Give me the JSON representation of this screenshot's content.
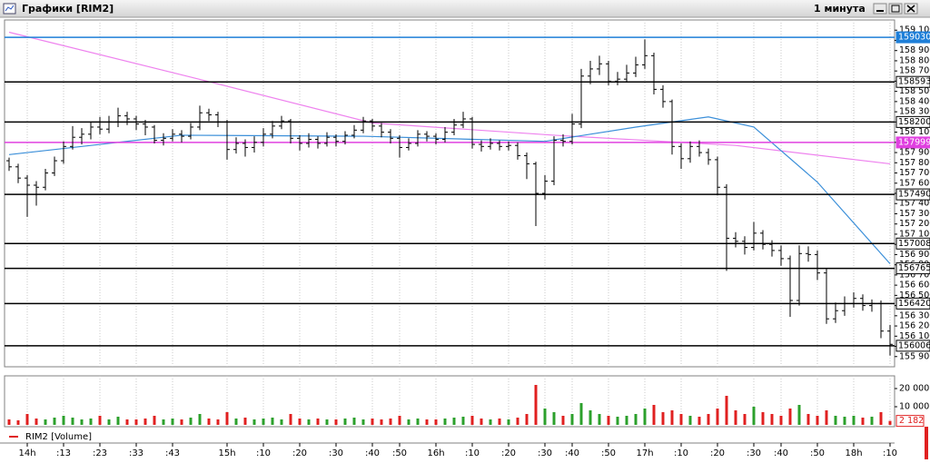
{
  "window": {
    "title": "Графики [RIM2]",
    "timeframe": "1 минута"
  },
  "chart_data": {
    "type": "ohlc",
    "bar_color": "#000000",
    "up_color": "#2ca02c",
    "down_color": "#e02020",
    "categories": [
      null,
      null,
      "14h",
      null,
      null,
      null,
      ":13",
      null,
      null,
      null,
      ":23",
      null,
      null,
      null,
      ":33",
      null,
      null,
      null,
      ":43",
      null,
      null,
      null,
      null,
      null,
      "15h",
      null,
      null,
      null,
      ":10",
      null,
      null,
      null,
      ":20",
      null,
      null,
      null,
      ":30",
      null,
      null,
      null,
      ":40",
      null,
      null,
      ":50",
      null,
      null,
      null,
      "16h",
      null,
      null,
      null,
      ":10",
      null,
      null,
      null,
      ":20",
      null,
      null,
      null,
      ":30",
      null,
      null,
      ":40",
      null,
      null,
      null,
      ":50",
      null,
      null,
      null,
      "17h",
      null,
      null,
      null,
      ":10",
      null,
      null,
      null,
      ":20",
      null,
      null,
      null,
      ":30",
      null,
      null,
      ":40",
      null,
      null,
      null,
      ":50",
      null,
      null,
      null,
      "18h",
      null,
      null,
      null,
      ":10"
    ],
    "open": [
      157820,
      157760,
      157650,
      157580,
      157560,
      157700,
      157820,
      157960,
      158050,
      158080,
      158150,
      158130,
      158200,
      158260,
      158230,
      158180,
      158150,
      158020,
      158040,
      158080,
      158060,
      158150,
      158290,
      158270,
      158200,
      157930,
      157990,
      157950,
      158000,
      158080,
      158160,
      158210,
      158040,
      157990,
      158030,
      157990,
      158050,
      158010,
      158070,
      158120,
      158210,
      158160,
      158100,
      158040,
      157950,
      157990,
      158080,
      158060,
      158030,
      158100,
      158170,
      158230,
      157980,
      157960,
      157990,
      157960,
      157970,
      157870,
      157790,
      157500,
      157620,
      158020,
      158010,
      158180,
      158650,
      158720,
      158770,
      158600,
      158620,
      158680,
      158760,
      158850,
      158520,
      158400,
      157960,
      157840,
      157960,
      157900,
      157830,
      157560,
      157060,
      157030,
      156970,
      157110,
      157000,
      156940,
      156860,
      156450,
      156910,
      156900,
      156720,
      156270,
      156350,
      156420,
      156470,
      156400,
      156420,
      156150
    ],
    "high": [
      157850,
      157790,
      157680,
      157620,
      157740,
      157860,
      158010,
      158160,
      158140,
      158200,
      158250,
      158260,
      158340,
      158300,
      158260,
      158220,
      158170,
      158090,
      158130,
      158120,
      158190,
      158360,
      158330,
      158300,
      158220,
      158050,
      158030,
      158060,
      158140,
      158210,
      158260,
      158230,
      158070,
      158090,
      158060,
      158100,
      158080,
      158110,
      158170,
      158250,
      158230,
      158190,
      158130,
      158070,
      158040,
      158120,
      158110,
      158090,
      158150,
      158230,
      158300,
      158250,
      158020,
      158040,
      158020,
      158010,
      158000,
      157900,
      157810,
      157680,
      158060,
      158080,
      158280,
      158720,
      158800,
      158850,
      158800,
      158690,
      158760,
      158840,
      159010,
      158880,
      158560,
      158420,
      157990,
      158010,
      158020,
      157940,
      157860,
      157590,
      157120,
      157080,
      157220,
      157140,
      157040,
      156990,
      156890,
      156990,
      156980,
      156940,
      156760,
      156430,
      156490,
      156530,
      156510,
      156460,
      156450,
      156210
    ],
    "low": [
      157720,
      157600,
      157270,
      157380,
      157530,
      157670,
      157790,
      157930,
      157980,
      158030,
      158080,
      158090,
      158150,
      158170,
      158120,
      158070,
      157990,
      157970,
      158010,
      158000,
      158030,
      158120,
      158210,
      158150,
      157830,
      157890,
      157860,
      157900,
      157960,
      158040,
      158130,
      157990,
      157920,
      157950,
      157940,
      157960,
      157960,
      157980,
      158040,
      158090,
      158110,
      158050,
      157990,
      157850,
      157920,
      157960,
      158010,
      157980,
      158000,
      158070,
      158140,
      157940,
      157910,
      157930,
      157920,
      157920,
      157830,
      157640,
      157180,
      157440,
      157580,
      157960,
      157980,
      158140,
      158570,
      158660,
      158560,
      158560,
      158590,
      158640,
      158720,
      158470,
      158340,
      157880,
      157740,
      157800,
      157860,
      157780,
      157480,
      156740,
      156970,
      156900,
      156940,
      156950,
      156880,
      156790,
      156290,
      156400,
      156830,
      156650,
      156220,
      156230,
      156300,
      156380,
      156350,
      156340,
      156080,
      155910
    ],
    "close": [
      157760,
      157650,
      157580,
      157560,
      157700,
      157820,
      157960,
      158050,
      158080,
      158150,
      158130,
      158200,
      158260,
      158230,
      158180,
      158150,
      158020,
      158040,
      158080,
      158060,
      158150,
      158290,
      158270,
      158200,
      157930,
      157990,
      157950,
      158000,
      158080,
      158160,
      158210,
      158040,
      157990,
      158030,
      157990,
      158050,
      158010,
      158070,
      158120,
      158210,
      158160,
      158100,
      158040,
      157950,
      157990,
      158080,
      158060,
      158030,
      158100,
      158170,
      158230,
      157980,
      157960,
      157990,
      157960,
      157970,
      157870,
      157790,
      157500,
      157620,
      158020,
      158010,
      158180,
      158650,
      158720,
      158770,
      158600,
      158620,
      158680,
      158760,
      158850,
      158520,
      158400,
      157960,
      157840,
      157960,
      157900,
      157830,
      157560,
      157060,
      157030,
      156970,
      157110,
      157000,
      156940,
      156860,
      156450,
      156910,
      156900,
      156720,
      156270,
      156350,
      156420,
      156470,
      156400,
      156420,
      156150,
      156020
    ],
    "ylim": [
      155800,
      159200
    ],
    "yticks": [
      {
        "value": 159100,
        "label": "159 100"
      },
      {
        "value": 159000,
        "label": "159 000"
      },
      {
        "value": 158900,
        "label": "158 900"
      },
      {
        "value": 158800,
        "label": "158 800"
      },
      {
        "value": 158700,
        "label": "158 700"
      },
      {
        "value": 158600,
        "label": "158 600"
      },
      {
        "value": 158500,
        "label": "158 500"
      },
      {
        "value": 158400,
        "label": "158 400"
      },
      {
        "value": 158300,
        "label": "158 300"
      },
      {
        "value": 158200,
        "label": "158 200"
      },
      {
        "value": 158100,
        "label": "158 100"
      },
      {
        "value": 158000,
        "label": "158 000"
      },
      {
        "value": 157900,
        "label": "157 900"
      },
      {
        "value": 157800,
        "label": "157 800"
      },
      {
        "value": 157700,
        "label": "157 700"
      },
      {
        "value": 157600,
        "label": "157 600"
      },
      {
        "value": 157500,
        "label": "157 500"
      },
      {
        "value": 157400,
        "label": "157 400"
      },
      {
        "value": 157300,
        "label": "157 300"
      },
      {
        "value": 157200,
        "label": "157 200"
      },
      {
        "value": 157100,
        "label": "157 100"
      },
      {
        "value": 157000,
        "label": "157 000"
      },
      {
        "value": 156900,
        "label": "156 900"
      },
      {
        "value": 156800,
        "label": "156 800"
      },
      {
        "value": 156700,
        "label": "156 700"
      },
      {
        "value": 156600,
        "label": "156 600"
      },
      {
        "value": 156500,
        "label": "156 500"
      },
      {
        "value": 156400,
        "label": "156 400"
      },
      {
        "value": 156300,
        "label": "156 300"
      },
      {
        "value": 156200,
        "label": "156 200"
      },
      {
        "value": 156100,
        "label": "156 100"
      },
      {
        "value": 156000,
        "label": "156 000"
      },
      {
        "value": 155900,
        "label": "155 900"
      }
    ],
    "levels": [
      {
        "value": 159030,
        "label": "159030.",
        "color": "#1e7fd8"
      },
      {
        "value": 158593,
        "label": "158593.",
        "color": "#000000"
      },
      {
        "value": 158200,
        "label": "158200.",
        "color": "#000000"
      },
      {
        "value": 157999,
        "label": "157999.",
        "color": "#e040e0"
      },
      {
        "value": 157490,
        "label": "157490.",
        "color": "#000000"
      },
      {
        "value": 157008,
        "label": "157008.",
        "color": "#000000"
      },
      {
        "value": 156765,
        "label": "156765.",
        "color": "#000000"
      },
      {
        "value": 156420,
        "label": "156420.",
        "color": "#000000"
      },
      {
        "value": 156006,
        "label": "156006.",
        "color": "#000000"
      }
    ],
    "ma_lines": [
      {
        "color": "#ee82ee",
        "x": [
          0,
          20,
          40,
          60,
          80,
          97
        ],
        "values": [
          159080,
          158640,
          158190,
          158070,
          157970,
          157790
        ]
      },
      {
        "color": "#3b8fd9",
        "x": [
          0,
          19,
          39,
          59,
          69,
          77,
          82,
          89,
          97
        ],
        "values": [
          157880,
          158070,
          158060,
          158010,
          158150,
          158250,
          158150,
          157610,
          156810
        ]
      }
    ],
    "grid": true,
    "volume": {
      "name": "RIM2 [Volume]",
      "color": "#e02020",
      "values": [
        3000,
        2500,
        6000,
        3500,
        3000,
        4000,
        5000,
        4000,
        3000,
        3500,
        5000,
        3000,
        4500,
        3000,
        3000,
        3500,
        5000,
        3000,
        3500,
        3000,
        4000,
        6000,
        3500,
        3000,
        7000,
        3500,
        4000,
        3000,
        3500,
        4000,
        3000,
        6000,
        3500,
        3000,
        3500,
        3000,
        3000,
        3500,
        4000,
        3000,
        3500,
        3000,
        3500,
        5000,
        3000,
        3500,
        3000,
        3000,
        3500,
        4000,
        4500,
        5000,
        3500,
        3000,
        3500,
        3000,
        4000,
        6000,
        22000,
        9000,
        7000,
        5000,
        6000,
        12000,
        8000,
        6000,
        5000,
        4500,
        5000,
        6000,
        9000,
        11000,
        7000,
        8000,
        6000,
        5000,
        4500,
        6000,
        9000,
        16000,
        8000,
        6000,
        10000,
        7000,
        6000,
        5000,
        9000,
        11000,
        6000,
        5000,
        8000,
        5000,
        4500,
        5000,
        4000,
        4500,
        7000,
        2182
      ],
      "current_label": "2 182",
      "ylim": [
        0,
        25000
      ],
      "yticks": [
        {
          "value": 20000,
          "label": "20 000"
        },
        {
          "value": 10000,
          "label": "10 000"
        }
      ]
    }
  }
}
